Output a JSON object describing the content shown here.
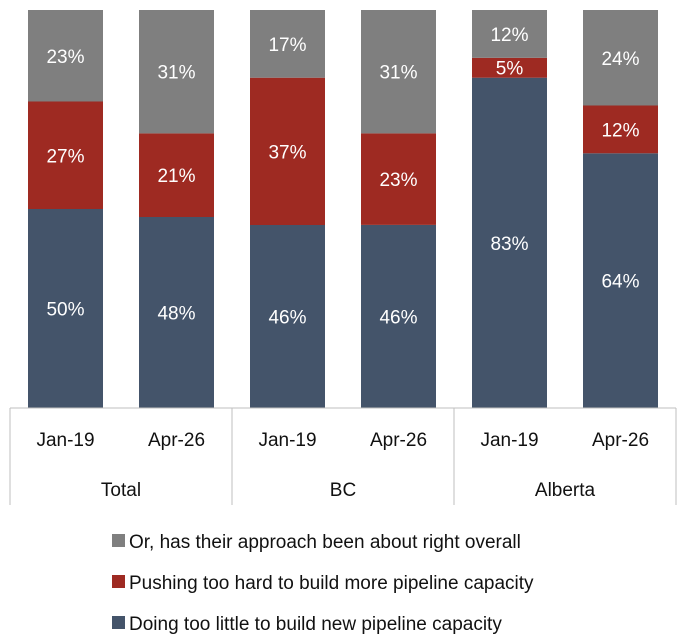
{
  "chart_data": {
    "type": "bar",
    "stacked": true,
    "ylim": [
      0,
      100
    ],
    "grid": false,
    "legend_position": "bottom",
    "groups": [
      {
        "label": "Total",
        "categories": [
          "Jan-19",
          "Apr-26"
        ]
      },
      {
        "label": "BC",
        "categories": [
          "Jan-19",
          "Apr-26"
        ]
      },
      {
        "label": "Alberta",
        "categories": [
          "Jan-19",
          "Apr-26"
        ]
      }
    ],
    "categories": [
      "Jan-19",
      "Apr-26",
      "Jan-19",
      "Apr-26",
      "Jan-19",
      "Apr-26"
    ],
    "series": [
      {
        "name": "Doing too little to build new pipeline capacity",
        "color": "#44546a",
        "values": [
          50,
          48,
          46,
          46,
          83,
          64
        ],
        "labels": [
          "50%",
          "48%",
          "46%",
          "46%",
          "83%",
          "64%"
        ]
      },
      {
        "name": "Pushing too hard to build more pipeline capacity",
        "color": "#9e2a22",
        "values": [
          27,
          21,
          37,
          23,
          5,
          12
        ],
        "labels": [
          "27%",
          "21%",
          "37%",
          "23%",
          "5%",
          "12%"
        ]
      },
      {
        "name": "Or, has their approach been about right overall",
        "color": "#7f7f7f",
        "values": [
          23,
          31,
          17,
          31,
          12,
          24
        ],
        "labels": [
          "23%",
          "31%",
          "17%",
          "31%",
          "12%",
          "24%"
        ]
      }
    ],
    "legend_order": [
      "Or, has their approach been about right overall",
      "Pushing too hard to build more pipeline capacity",
      "Doing too little to build new pipeline capacity"
    ]
  }
}
